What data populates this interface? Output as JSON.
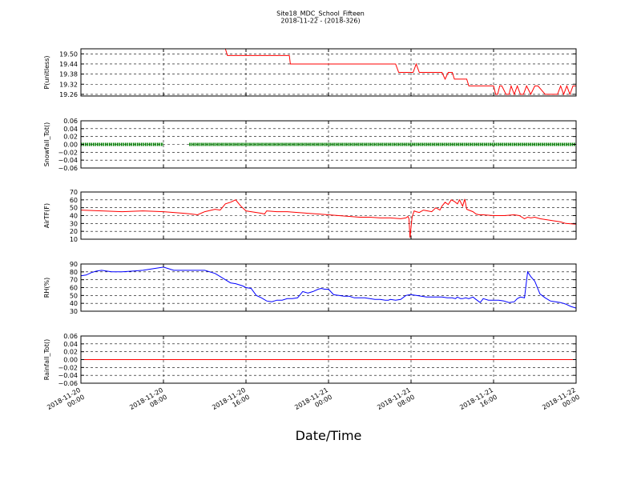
{
  "figure": {
    "title_line1": "Site18_MDC_School_Fifteen",
    "title_line2": "2018-11-22 - (2018-326)",
    "xlabel": "Date/Time",
    "x_tick_labels": [
      [
        "2018-11-20",
        "00:00"
      ],
      [
        "2018-11-20",
        "08:00"
      ],
      [
        "2018-11-20",
        "16:00"
      ],
      [
        "2018-11-21",
        "00:00"
      ],
      [
        "2018-11-21",
        "08:00"
      ],
      [
        "2018-11-21",
        "16:00"
      ],
      [
        "2018-11-22",
        "00:00"
      ]
    ]
  },
  "chart_data": [
    {
      "type": "line",
      "ylabel": "P(unitless)",
      "color": "#ff0000",
      "ylim": [
        19.25,
        19.53
      ],
      "yticks": [
        19.26,
        19.32,
        19.38,
        19.44,
        19.5
      ],
      "ytick_labels": [
        "19.26",
        "19.32",
        "19.38",
        "19.44",
        "19.50"
      ],
      "grid": true,
      "x_hours": [
        0,
        14.0,
        14.2,
        20.2,
        20.3,
        30.5,
        30.8,
        32.2,
        32.5,
        32.8,
        35.0,
        35.3,
        35.6,
        36.0,
        36.2,
        36.8,
        37.0,
        37.4,
        37.6,
        38.6,
        38.8,
        40.0,
        40.2,
        40.4,
        40.6,
        40.8,
        41.2,
        41.5,
        41.7,
        42.0,
        42.3,
        42.6,
        42.9,
        43.2,
        43.6,
        44.0,
        44.3,
        45.0,
        45.3,
        45.6,
        45.8,
        46.2,
        46.5,
        46.8,
        47.1,
        47.4,
        47.7,
        48.0
      ],
      "y": [
        19.53,
        19.53,
        19.49,
        19.49,
        19.44,
        19.44,
        19.39,
        19.39,
        19.44,
        19.39,
        19.39,
        19.35,
        19.39,
        19.39,
        19.35,
        19.35,
        19.35,
        19.35,
        19.31,
        19.31,
        19.31,
        19.31,
        19.26,
        19.26,
        19.31,
        19.31,
        19.26,
        19.26,
        19.31,
        19.26,
        19.31,
        19.26,
        19.26,
        19.31,
        19.26,
        19.31,
        19.31,
        19.26,
        19.26,
        19.26,
        19.26,
        19.26,
        19.31,
        19.26,
        19.31,
        19.26,
        19.31,
        19.31
      ]
    },
    {
      "type": "scatter",
      "ylabel": "Snowfall_Tot()",
      "color": "#008000",
      "ylim": [
        -0.06,
        0.06
      ],
      "yticks": [
        -0.06,
        -0.04,
        -0.02,
        0.0,
        0.02,
        0.04,
        0.06
      ],
      "ytick_labels": [
        "−0.06",
        "−0.04",
        "−0.02",
        "0.00",
        "0.02",
        "0.04",
        "0.06"
      ],
      "grid": true,
      "segments_hours": [
        [
          0,
          8.0
        ],
        [
          10.5,
          48.0
        ]
      ],
      "value": 0.0
    },
    {
      "type": "line",
      "ylabel": "AirTF(F)",
      "color": "#ff0000",
      "ylim": [
        10,
        70
      ],
      "yticks": [
        10,
        20,
        30,
        40,
        50,
        60,
        70
      ],
      "ytick_labels": [
        "10",
        "20",
        "30",
        "40",
        "50",
        "60",
        "70"
      ],
      "grid": true,
      "x_hours": [
        0,
        2,
        4,
        6,
        8,
        9,
        10,
        10.7,
        11.3,
        12,
        13,
        13.5,
        14,
        14.5,
        15,
        15.5,
        16,
        17,
        17.5,
        17.8,
        18,
        19,
        20,
        21,
        22,
        23,
        24,
        25,
        26,
        27,
        28,
        29,
        30,
        31,
        31.5,
        31.7,
        31.8,
        31.9,
        32.1,
        32.3,
        32.5,
        32.8,
        33.2,
        33.6,
        34.0,
        34.4,
        34.8,
        35.0,
        35.3,
        35.6,
        35.9,
        36.2,
        36.5,
        36.7,
        37.0,
        37.2,
        37.4,
        37.6,
        37.8,
        38.0,
        38.3,
        38.6,
        39,
        40,
        41,
        42,
        42.5,
        43,
        43.3,
        43.6,
        44,
        44.5,
        45,
        46,
        46.5,
        47,
        48
      ],
      "y": [
        47,
        46,
        45,
        46,
        45,
        44,
        43,
        42,
        41,
        45,
        48,
        47,
        55,
        57,
        60,
        52,
        46,
        44,
        43,
        42,
        46,
        45,
        45,
        44,
        43,
        42,
        41,
        40,
        39,
        38,
        38,
        37,
        37,
        36,
        37,
        39,
        36,
        12,
        38,
        46,
        45,
        44,
        47,
        46,
        45,
        50,
        47,
        52,
        57,
        54,
        60,
        58,
        55,
        60,
        52,
        61,
        48,
        47,
        46,
        45,
        42,
        41,
        41,
        40,
        40,
        41,
        40,
        36,
        38,
        37,
        38,
        36,
        35,
        33,
        32,
        30,
        29
      ]
    },
    {
      "type": "line",
      "ylabel": "RH(%)",
      "color": "#0000ff",
      "ylim": [
        30,
        90
      ],
      "yticks": [
        30,
        40,
        50,
        60,
        70,
        80,
        90
      ],
      "ytick_labels": [
        "30",
        "40",
        "50",
        "60",
        "70",
        "80",
        "90"
      ],
      "grid": true,
      "x_hours": [
        0,
        0.5,
        1.0,
        1.5,
        2.0,
        2.5,
        3.0,
        3.5,
        4.0,
        5.0,
        6.0,
        7.0,
        7.5,
        8.0,
        9.0,
        10.0,
        11.0,
        12.0,
        13.0,
        13.5,
        14.0,
        14.5,
        15.0,
        15.5,
        15.7,
        16.0,
        16.5,
        17.0,
        17.5,
        18.0,
        18.5,
        19.0,
        19.5,
        20.0,
        20.5,
        21.0,
        21.5,
        22.0,
        22.5,
        23.0,
        23.3,
        23.6,
        24.0,
        24.5,
        25.0,
        25.5,
        26.0,
        26.5,
        27.0,
        27.5,
        28.0,
        28.5,
        29.0,
        29.5,
        29.8,
        30.0,
        30.5,
        31.0,
        31.5,
        31.9,
        32.0,
        32.5,
        33.0,
        33.5,
        34.0,
        34.5,
        35.0,
        35.5,
        36.0,
        36.3,
        36.5,
        36.8,
        37.0,
        37.3,
        37.6,
        38.0,
        38.3,
        38.7,
        39.0,
        39.5,
        40.0,
        40.5,
        41.0,
        41.5,
        42.0,
        42.3,
        42.6,
        43.0,
        43.3,
        43.6,
        44.0,
        44.5,
        45.0,
        45.5,
        46.0,
        46.5,
        47.0,
        47.5,
        48.0
      ],
      "y": [
        75,
        76,
        79,
        81,
        82,
        81,
        80,
        80,
        80,
        81,
        82,
        84,
        85,
        86,
        82,
        82,
        82,
        82,
        78,
        74,
        70,
        66,
        65,
        63,
        62,
        60,
        59,
        50,
        47,
        43,
        42,
        44,
        44,
        46,
        46,
        47,
        55,
        53,
        55,
        58,
        59,
        58,
        58,
        51,
        50,
        49,
        49,
        47,
        47,
        47,
        46,
        45,
        45,
        44,
        44,
        45,
        44,
        45,
        50,
        51,
        51,
        50,
        49,
        48,
        48,
        48,
        48,
        47,
        47,
        46,
        48,
        46,
        46,
        47,
        46,
        48,
        45,
        41,
        46,
        44,
        44,
        44,
        43,
        41,
        42,
        46,
        48,
        47,
        80,
        74,
        68,
        52,
        47,
        43,
        42,
        41,
        39,
        36,
        34
      ]
    },
    {
      "type": "line",
      "ylabel": "Rainfall_Tot()",
      "color": "#ff0000",
      "ylim": [
        -0.06,
        0.06
      ],
      "yticks": [
        -0.06,
        -0.04,
        -0.02,
        0.0,
        0.02,
        0.04,
        0.06
      ],
      "ytick_labels": [
        "−0.06",
        "−0.04",
        "−0.02",
        "0.00",
        "0.02",
        "0.04",
        "0.06"
      ],
      "grid": true,
      "x_hours": [
        0,
        48
      ],
      "y": [
        0.0,
        0.0
      ]
    }
  ]
}
